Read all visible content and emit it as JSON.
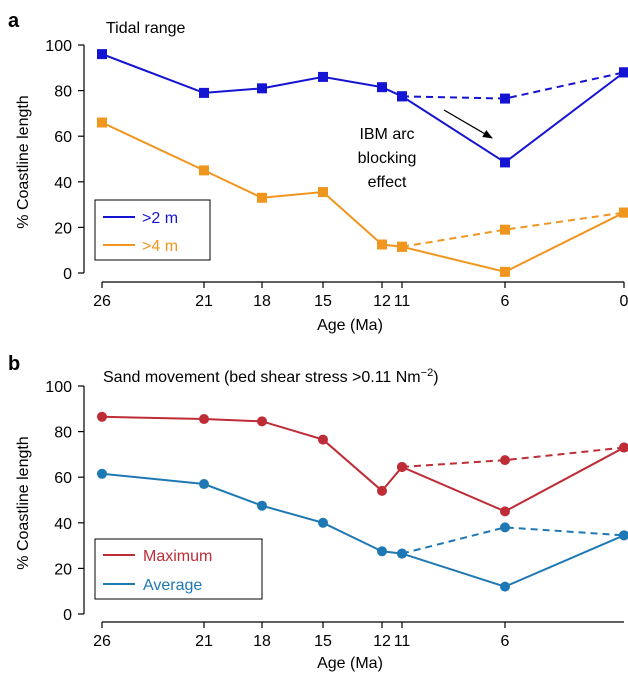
{
  "chart_data": [
    {
      "type": "line",
      "panel_label": "a",
      "title": "Tidal range",
      "xlabel": "Age (Ma)",
      "ylabel": "% Coastline length",
      "x_ticks": [
        26,
        21,
        18,
        15,
        12,
        11,
        6,
        0
      ],
      "x_tick_labels": [
        "26",
        "21",
        "18",
        "15",
        "12",
        "11",
        "6",
        "0"
      ],
      "y_ticks": [
        0,
        20,
        40,
        60,
        80,
        100
      ],
      "ylim": [
        0,
        100
      ],
      "marker": "square",
      "grid": false,
      "legend_position": "bottom-left",
      "series": [
        {
          "name": ">2 m",
          "color": "#1414d2",
          "x": [
            26,
            21,
            18,
            15,
            12,
            11,
            6,
            0
          ],
          "values": [
            96,
            79,
            81,
            86,
            81.5,
            77.5,
            48.5,
            88
          ]
        },
        {
          "name": ">4 m",
          "color": "#f0961e",
          "x": [
            26,
            21,
            18,
            15,
            12,
            11,
            6,
            0
          ],
          "values": [
            66,
            45,
            33,
            35.5,
            12.5,
            11.5,
            0.5,
            26.5
          ]
        }
      ],
      "dashed_branches": [
        {
          "color": "#1414d2",
          "x": [
            11,
            6,
            0
          ],
          "values": [
            77.5,
            76.5,
            88
          ]
        },
        {
          "color": "#f0961e",
          "x": [
            11,
            6,
            0
          ],
          "values": [
            11.5,
            19,
            26.5
          ]
        }
      ],
      "annotation": {
        "lines": [
          "IBM arc",
          "blocking",
          "effect"
        ]
      }
    },
    {
      "type": "line",
      "panel_label": "b",
      "title": "Sand movement (bed shear stress >0.11 Nm",
      "title_superscript": "−2",
      "title_suffix": ")",
      "xlabel": "Age (Ma)",
      "ylabel": "% Coastline length",
      "x_ticks": [
        26,
        21,
        18,
        15,
        12,
        11,
        6
      ],
      "x_tick_labels": [
        "26",
        "21",
        "18",
        "15",
        "12",
        "11",
        "6"
      ],
      "y_ticks": [
        0,
        20,
        40,
        60,
        80,
        100
      ],
      "ylim": [
        0,
        100
      ],
      "marker": "circle",
      "grid": false,
      "legend_position": "bottom-left",
      "series": [
        {
          "name": "Maximum",
          "color": "#be2d37",
          "x": [
            26,
            21,
            18,
            15,
            12,
            11,
            6,
            0
          ],
          "values": [
            86.5,
            85.5,
            84.5,
            76.5,
            54,
            64.5,
            45,
            73
          ]
        },
        {
          "name": "Average",
          "color": "#1e78b4",
          "x": [
            26,
            21,
            18,
            15,
            12,
            11,
            6,
            0
          ],
          "values": [
            61.5,
            57,
            47.5,
            40,
            27.5,
            26.5,
            12,
            34.5
          ]
        }
      ],
      "dashed_branches": [
        {
          "color": "#be2d37",
          "x": [
            11,
            6,
            0
          ],
          "values": [
            64.5,
            67.5,
            73
          ]
        },
        {
          "color": "#1e78b4",
          "x": [
            11,
            6,
            0
          ],
          "values": [
            26.5,
            38,
            34.5
          ]
        }
      ]
    }
  ]
}
